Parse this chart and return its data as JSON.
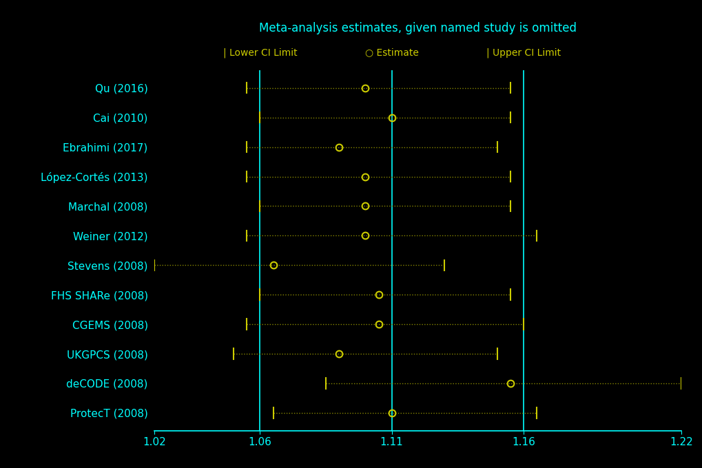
{
  "title": "Meta-analysis estimates, given named study is omitted",
  "legend_lower": "| Lower CI Limit",
  "legend_estimate": "○ Estimate",
  "legend_upper": "| Upper CI Limit",
  "studies": [
    "Qu (2016)",
    "Cai (2010)",
    "Ebrahimi (2017)",
    "López-Cortés (2013)",
    "Marchal (2008)",
    "Weiner (2012)",
    "Stevens (2008)",
    "FHS SHARe (2008)",
    "CGEMS (2008)",
    "UKGPCS (2008)",
    "deCODE (2008)",
    "ProtecT (2008)"
  ],
  "estimates": [
    1.1,
    1.11,
    1.09,
    1.1,
    1.1,
    1.1,
    1.065,
    1.105,
    1.105,
    1.09,
    1.155,
    1.11
  ],
  "lower_ci": [
    1.055,
    1.06,
    1.055,
    1.055,
    1.06,
    1.055,
    1.02,
    1.06,
    1.055,
    1.05,
    1.085,
    1.065
  ],
  "upper_ci": [
    1.155,
    1.155,
    1.15,
    1.155,
    1.155,
    1.165,
    1.13,
    1.155,
    1.16,
    1.15,
    1.22,
    1.165
  ],
  "xlim": [
    1.02,
    1.22
  ],
  "xticks": [
    1.02,
    1.06,
    1.11,
    1.16,
    1.22
  ],
  "background_color": "#000000",
  "cyan_color": "#00FFFF",
  "yellow_color": "#CCCC00",
  "dot_line_color": "#888800",
  "figsize": [
    10.2,
    6.8
  ],
  "dpi": 100
}
